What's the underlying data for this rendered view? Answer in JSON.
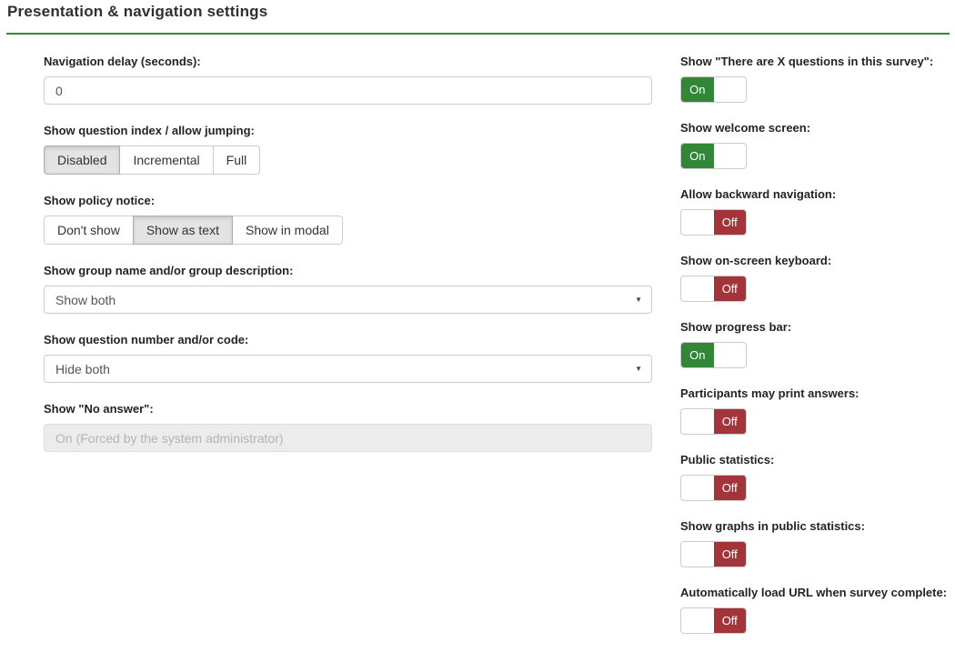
{
  "page": {
    "title": "Presentation & navigation settings"
  },
  "colors": {
    "on_green": "#328637",
    "off_red": "#a33439",
    "divider_green": "#328637"
  },
  "icons": {
    "dropdown_arrow": "▼"
  },
  "left": {
    "fields": [
      {
        "type": "text",
        "label": "Navigation delay (seconds):",
        "value": "0"
      },
      {
        "type": "button-group",
        "label": "Show question index / allow jumping:",
        "options": [
          "Disabled",
          "Incremental",
          "Full"
        ],
        "selected": "Disabled"
      },
      {
        "type": "button-group",
        "label": "Show policy notice:",
        "options": [
          "Don't show",
          "Show as text",
          "Show in modal"
        ],
        "selected": "Show as text"
      },
      {
        "type": "select",
        "label": "Show group name and/or group description:",
        "value": "Show both"
      },
      {
        "type": "select",
        "label": "Show question number and/or code:",
        "value": "Hide both"
      },
      {
        "type": "text-disabled",
        "label": "Show \"No answer\":",
        "value": "On (Forced by the system administrator)",
        "disabled": true
      }
    ]
  },
  "right": {
    "toggles": [
      {
        "label": "Show \"There are X questions in this survey\":",
        "state": "On"
      },
      {
        "label": "Show welcome screen:",
        "state": "On"
      },
      {
        "label": "Allow backward navigation:",
        "state": "Off"
      },
      {
        "label": "Show on-screen keyboard:",
        "state": "Off"
      },
      {
        "label": "Show progress bar:",
        "state": "On"
      },
      {
        "label": "Participants may print answers:",
        "state": "Off"
      },
      {
        "label": "Public statistics:",
        "state": "Off"
      },
      {
        "label": "Show graphs in public statistics:",
        "state": "Off"
      },
      {
        "label": "Automatically load URL when survey complete:",
        "state": "Off"
      }
    ]
  }
}
